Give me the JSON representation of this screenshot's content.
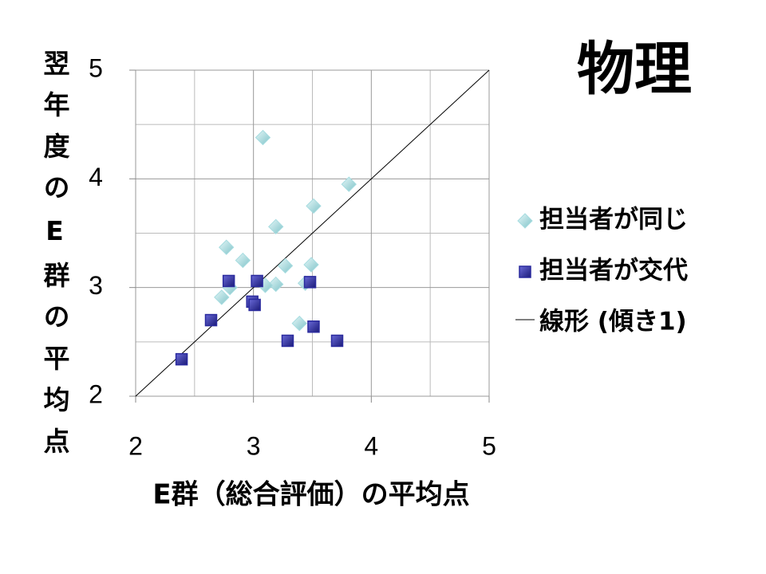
{
  "chart_data": {
    "type": "scatter",
    "title": "物理",
    "xlabel": "E群（総合評価）の平均点",
    "ylabel": "翌年度のE群の平均点",
    "xlim": [
      2,
      5
    ],
    "ylim": [
      2,
      5
    ],
    "xticks": [
      2,
      3,
      4,
      5
    ],
    "yticks": [
      2,
      3,
      4,
      5
    ],
    "xminorticks": [
      2.5,
      3.5,
      4.5
    ],
    "yminorticks": [
      2.5,
      3.5,
      4.5
    ],
    "grid": true,
    "series": [
      {
        "name": "担当者が同じ",
        "color": "#a6dce0",
        "marker": "diamond",
        "x": [
          3.08,
          3.81,
          3.51,
          3.19,
          2.77,
          2.91,
          3.27,
          3.49,
          3.19,
          3.1,
          3.44,
          2.8,
          2.73,
          3.39
        ],
        "values": [
          4.38,
          3.95,
          3.75,
          3.56,
          3.37,
          3.25,
          3.2,
          3.21,
          3.03,
          3.02,
          3.04,
          3.0,
          2.91,
          2.67
        ]
      },
      {
        "name": "担当者が交代",
        "color": "#2b2b9e",
        "marker": "square",
        "x": [
          2.79,
          3.03,
          3.48,
          2.99,
          3.01,
          2.64,
          3.51,
          3.29,
          3.71,
          2.39
        ],
        "values": [
          3.06,
          3.06,
          3.05,
          2.87,
          2.84,
          2.7,
          2.64,
          2.51,
          2.51,
          2.34
        ]
      }
    ],
    "trendline": {
      "name": "線形 (傾き1)",
      "color": "#000000",
      "x": [
        2,
        5
      ],
      "values": [
        2,
        5
      ]
    }
  }
}
